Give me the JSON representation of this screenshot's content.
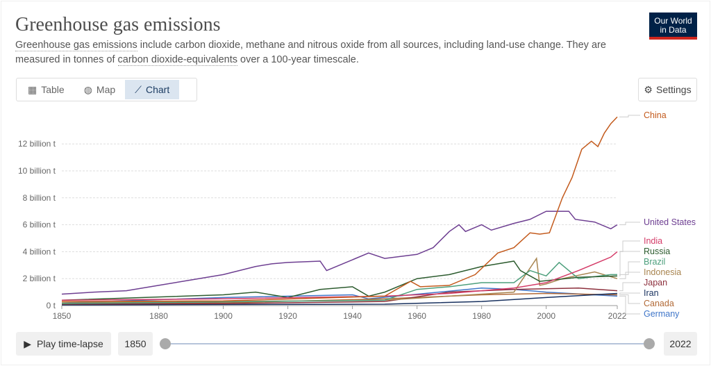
{
  "header": {
    "title": "Greenhouse gas emissions",
    "subtitle_link1": "Greenhouse gas emissions",
    "subtitle_part1": " include carbon dioxide, methane and nitrous oxide from all sources, including land-use change. They are measured in tonnes of ",
    "subtitle_link2": "carbon dioxide-equivalents",
    "subtitle_part2": " over a 100-year timescale.",
    "logo": "Our World in Data"
  },
  "tabs": [
    {
      "label": "Table",
      "icon": "table-icon"
    },
    {
      "label": "Map",
      "icon": "globe-icon"
    },
    {
      "label": "Chart",
      "icon": "line-chart-icon",
      "active": true
    }
  ],
  "settings_label": "Settings",
  "controls": {
    "play_label": "Play time-lapse",
    "start_year": "1850",
    "end_year": "2022"
  },
  "chart_data": {
    "type": "line",
    "xlim": [
      1850,
      2022
    ],
    "ylim": [
      0,
      14
    ],
    "x_ticks": [
      "1850",
      "1880",
      "1900",
      "1920",
      "1940",
      "1960",
      "1980",
      "2000",
      "2022"
    ],
    "y_ticks": [
      "0 t",
      "2 billion t",
      "4 billion t",
      "6 billion t",
      "8 billion t",
      "10 billion t",
      "12 billion t"
    ],
    "grid": "horizontal dotted",
    "legend": "right end labels",
    "units": "billion tonnes CO2e",
    "series": [
      {
        "name": "China",
        "color": "#c35a1c",
        "points": [
          [
            1850,
            0.3
          ],
          [
            1900,
            0.35
          ],
          [
            1950,
            0.7
          ],
          [
            1958,
            1.8
          ],
          [
            1961,
            1.4
          ],
          [
            1970,
            1.5
          ],
          [
            1978,
            2.3
          ],
          [
            1985,
            3.9
          ],
          [
            1990,
            4.3
          ],
          [
            1995,
            5.4
          ],
          [
            1998,
            5.3
          ],
          [
            2001,
            5.4
          ],
          [
            2005,
            8.0
          ],
          [
            2008,
            9.5
          ],
          [
            2011,
            11.6
          ],
          [
            2014,
            12.2
          ],
          [
            2016,
            11.8
          ],
          [
            2018,
            12.8
          ],
          [
            2020,
            13.5
          ],
          [
            2022,
            14.0
          ]
        ]
      },
      {
        "name": "United States",
        "color": "#6d3e91",
        "points": [
          [
            1850,
            0.85
          ],
          [
            1860,
            1.0
          ],
          [
            1870,
            1.1
          ],
          [
            1880,
            1.5
          ],
          [
            1890,
            1.9
          ],
          [
            1900,
            2.3
          ],
          [
            1910,
            2.9
          ],
          [
            1915,
            3.1
          ],
          [
            1920,
            3.2
          ],
          [
            1930,
            3.3
          ],
          [
            1932,
            2.6
          ],
          [
            1940,
            3.4
          ],
          [
            1945,
            3.9
          ],
          [
            1950,
            3.5
          ],
          [
            1960,
            3.8
          ],
          [
            1965,
            4.3
          ],
          [
            1970,
            5.5
          ],
          [
            1973,
            6.0
          ],
          [
            1975,
            5.5
          ],
          [
            1980,
            6.0
          ],
          [
            1983,
            5.6
          ],
          [
            1990,
            6.1
          ],
          [
            1995,
            6.4
          ],
          [
            2000,
            7.0
          ],
          [
            2007,
            7.0
          ],
          [
            2009,
            6.4
          ],
          [
            2015,
            6.2
          ],
          [
            2020,
            5.7
          ],
          [
            2022,
            6.0
          ]
        ]
      },
      {
        "name": "India",
        "color": "#d43a67",
        "points": [
          [
            1850,
            0.4
          ],
          [
            1900,
            0.5
          ],
          [
            1950,
            0.7
          ],
          [
            1970,
            0.9
          ],
          [
            1990,
            1.3
          ],
          [
            2000,
            1.7
          ],
          [
            2010,
            2.6
          ],
          [
            2020,
            3.6
          ],
          [
            2022,
            4.0
          ]
        ]
      },
      {
        "name": "Russia",
        "color": "#2c5b2e",
        "points": [
          [
            1850,
            0.4
          ],
          [
            1900,
            0.8
          ],
          [
            1910,
            1.0
          ],
          [
            1920,
            0.6
          ],
          [
            1930,
            1.2
          ],
          [
            1940,
            1.4
          ],
          [
            1945,
            0.7
          ],
          [
            1950,
            1.0
          ],
          [
            1960,
            2.0
          ],
          [
            1970,
            2.3
          ],
          [
            1980,
            2.9
          ],
          [
            1990,
            3.3
          ],
          [
            1992,
            2.6
          ],
          [
            1998,
            1.8
          ],
          [
            2010,
            2.1
          ],
          [
            2022,
            2.2
          ]
        ]
      },
      {
        "name": "Brazil",
        "color": "#4c9f7c",
        "points": [
          [
            1850,
            0.15
          ],
          [
            1950,
            0.4
          ],
          [
            1960,
            1.2
          ],
          [
            1970,
            1.4
          ],
          [
            1980,
            1.7
          ],
          [
            1990,
            1.7
          ],
          [
            1995,
            2.6
          ],
          [
            2000,
            2.2
          ],
          [
            2004,
            3.2
          ],
          [
            2010,
            2.0
          ],
          [
            2020,
            2.3
          ],
          [
            2022,
            2.3
          ]
        ]
      },
      {
        "name": "Indonesia",
        "color": "#a8844f",
        "points": [
          [
            1850,
            0.2
          ],
          [
            1950,
            0.4
          ],
          [
            1970,
            0.7
          ],
          [
            1990,
            1.0
          ],
          [
            1997,
            3.5
          ],
          [
            1998,
            1.5
          ],
          [
            2000,
            1.6
          ],
          [
            2005,
            2.0
          ],
          [
            2015,
            2.5
          ],
          [
            2022,
            2.0
          ]
        ]
      },
      {
        "name": "Japan",
        "color": "#8c2f3c",
        "points": [
          [
            1850,
            0.1
          ],
          [
            1900,
            0.15
          ],
          [
            1950,
            0.3
          ],
          [
            1970,
            1.0
          ],
          [
            1990,
            1.2
          ],
          [
            2010,
            1.3
          ],
          [
            2022,
            1.1
          ]
        ]
      },
      {
        "name": "Iran",
        "color": "#17305e",
        "points": [
          [
            1850,
            0.05
          ],
          [
            1950,
            0.1
          ],
          [
            1980,
            0.3
          ],
          [
            2000,
            0.6
          ],
          [
            2022,
            0.9
          ]
        ]
      },
      {
        "name": "Canada",
        "color": "#b26a37",
        "points": [
          [
            1850,
            0.1
          ],
          [
            1900,
            0.2
          ],
          [
            1950,
            0.5
          ],
          [
            1980,
            0.8
          ],
          [
            2000,
            0.9
          ],
          [
            2022,
            0.8
          ]
        ]
      },
      {
        "name": "Germany",
        "color": "#3f76c9",
        "points": [
          [
            1850,
            0.2
          ],
          [
            1900,
            0.6
          ],
          [
            1940,
            0.8
          ],
          [
            1945,
            0.5
          ],
          [
            1980,
            1.3
          ],
          [
            1990,
            1.2
          ],
          [
            2000,
            1.0
          ],
          [
            2022,
            0.7
          ]
        ]
      }
    ]
  }
}
